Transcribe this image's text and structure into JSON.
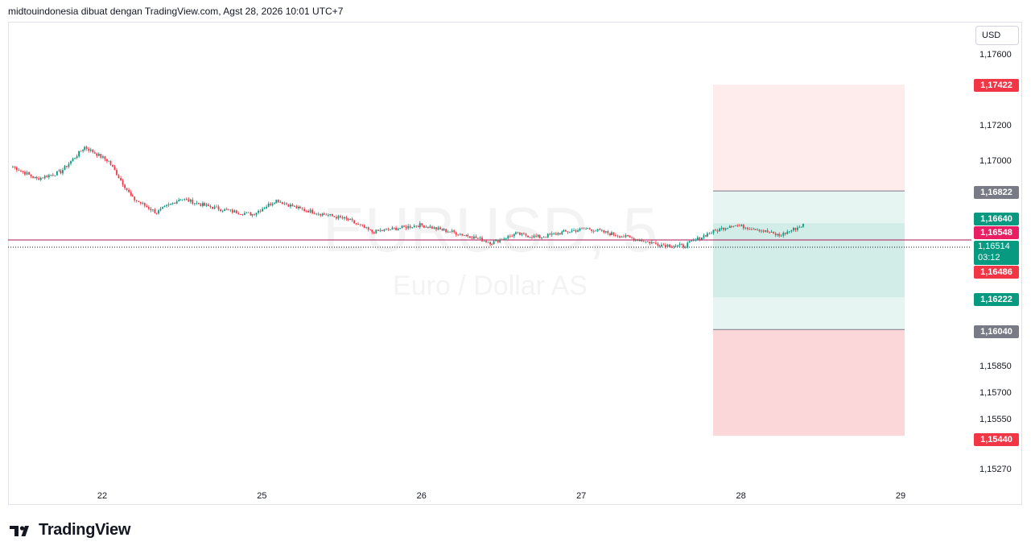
{
  "header": {
    "attribution": "midtouindonesia dibuat dengan TradingView.com, Agst 28, 2026 10:01 UTC+7"
  },
  "currency": "USD",
  "watermark": {
    "symbol": "EURUSD, 5",
    "name": "Euro / Dollar AS"
  },
  "logo": {
    "text": "TradingView",
    "icon": "tradingview-logo-icon"
  },
  "colors": {
    "up": "#089981",
    "down": "#f23645",
    "grid_line": "#e0e3eb",
    "gray_label": "#787b86"
  },
  "chart_data": {
    "type": "candlestick",
    "symbol": "EURUSD",
    "interval": "5",
    "x_labels": [
      "22",
      "25",
      "26",
      "27",
      "28",
      "29"
    ],
    "y_ticks": [
      "1,17600",
      "1,17200",
      "1,17000",
      "1,15850",
      "1,15700",
      "1,15550",
      "1,15270"
    ],
    "ylim": [
      1.1519,
      1.1778
    ],
    "current_price": {
      "value": "1,16514",
      "countdown": "03:12"
    },
    "close_series": [
      [
        0.0,
        1.1696
      ],
      [
        0.15,
        1.1689
      ],
      [
        0.3,
        1.1693
      ],
      [
        0.45,
        1.1707
      ],
      [
        0.6,
        1.1699
      ],
      [
        0.75,
        1.1678
      ],
      [
        0.9,
        1.167
      ],
      [
        1.05,
        1.1678
      ],
      [
        1.2,
        1.1674
      ],
      [
        1.35,
        1.1671
      ],
      [
        1.5,
        1.1669
      ],
      [
        1.65,
        1.1677
      ],
      [
        1.8,
        1.1672
      ],
      [
        1.95,
        1.1669
      ],
      [
        2.1,
        1.1666
      ],
      [
        2.25,
        1.1659
      ],
      [
        2.4,
        1.1661
      ],
      [
        2.55,
        1.1663
      ],
      [
        2.7,
        1.166
      ],
      [
        2.85,
        1.1657
      ],
      [
        3.0,
        1.1653
      ],
      [
        3.15,
        1.1658
      ],
      [
        3.3,
        1.1656
      ],
      [
        3.45,
        1.1659
      ],
      [
        3.6,
        1.1661
      ],
      [
        3.75,
        1.1658
      ],
      [
        3.9,
        1.1655
      ],
      [
        4.05,
        1.1652
      ],
      [
        4.2,
        1.1651
      ],
      [
        4.35,
        1.1658
      ],
      [
        4.5,
        1.1663
      ],
      [
        4.65,
        1.1661
      ],
      [
        4.8,
        1.1657
      ],
      [
        4.95,
        1.1663
      ],
      [
        5.1,
        1.1665
      ],
      [
        5.25,
        1.1665
      ],
      [
        5.4,
        1.1667
      ],
      [
        5.55,
        1.1666
      ],
      [
        5.7,
        1.1663
      ],
      [
        5.85,
        1.1661
      ],
      [
        6.0,
        1.1658
      ],
      [
        6.15,
        1.1662
      ],
      [
        6.3,
        1.1666
      ],
      [
        6.45,
        1.1664
      ],
      [
        6.6,
        1.1654
      ],
      [
        6.75,
        1.1647
      ],
      [
        6.9,
        1.1651
      ],
      [
        7.05,
        1.1652
      ],
      [
        7.2,
        1.1651
      ],
      [
        7.35,
        1.1653
      ],
      [
        7.5,
        1.1655
      ],
      [
        7.65,
        1.1654
      ],
      [
        7.8,
        1.1653
      ],
      [
        7.95,
        1.1654
      ],
      [
        8.1,
        1.1648
      ],
      [
        8.25,
        1.1645
      ],
      [
        8.4,
        1.165
      ],
      [
        8.55,
        1.1651
      ],
      [
        8.7,
        1.1649
      ],
      [
        8.85,
        1.1652
      ],
      [
        9.0,
        1.1653
      ],
      [
        9.15,
        1.1653
      ],
      [
        9.3,
        1.165
      ]
    ],
    "position": {
      "type": "long",
      "target_price": "1,16822",
      "entry_price": "1,16640",
      "stop_price": "1,16222",
      "lower_price": "1,16040",
      "upper_zone_price": "1,17422",
      "lower_zone_price": "1,15440",
      "red_line_price": "1,16548",
      "red_label_price": "1,16486"
    }
  }
}
